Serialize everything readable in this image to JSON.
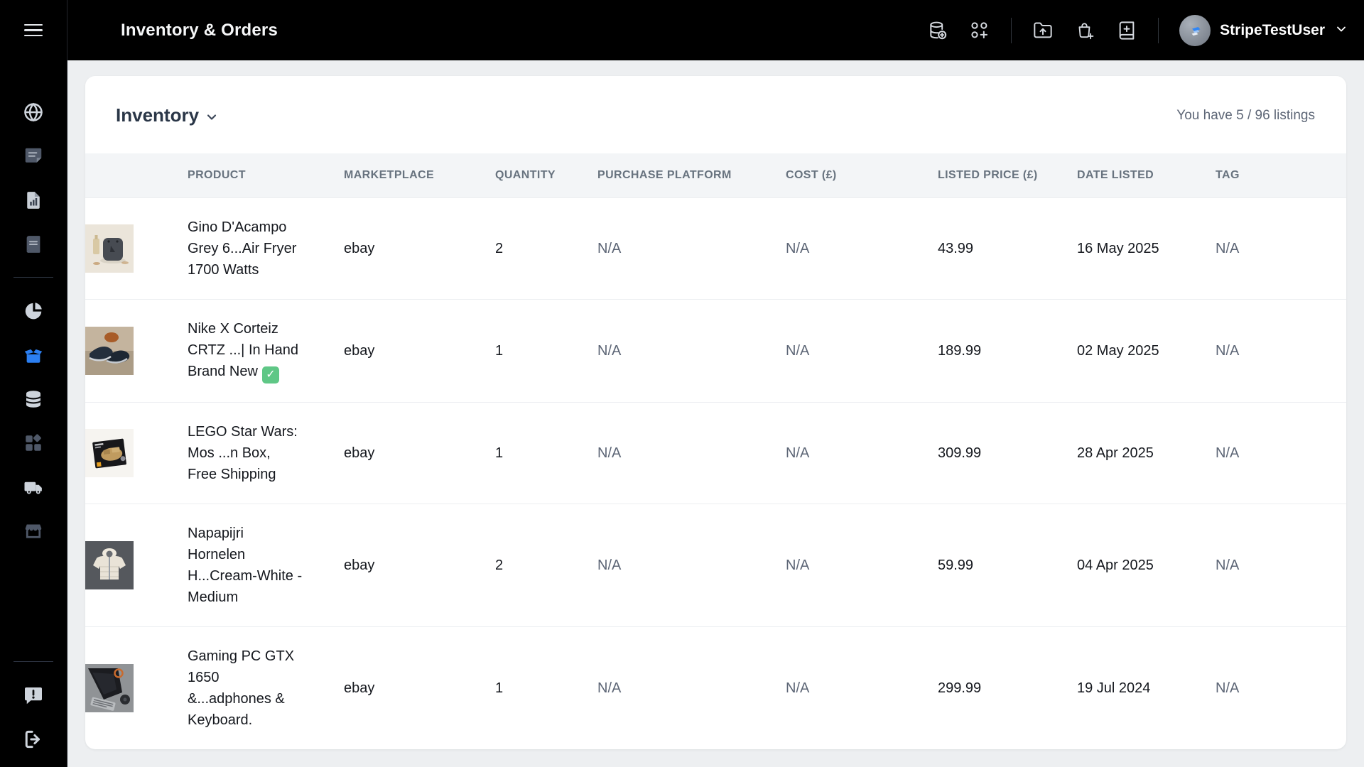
{
  "topbar": {
    "title": "Inventory & Orders",
    "icons": [
      "database-add-icon",
      "grid-add-icon",
      "folder-upload-icon",
      "bag-add-icon",
      "book-add-icon"
    ],
    "user": {
      "name": "StripeTestUser",
      "menu_icon": "chevron-down-icon"
    }
  },
  "sidebar": {
    "menu_icon": "hamburger-menu-icon",
    "icons_top": [
      "globe-icon",
      "note-icon",
      "file-chart-icon",
      "book-icon"
    ],
    "icons_middle": [
      "pie-chart-icon",
      "inventory-box-icon",
      "database-icon",
      "categories-icon",
      "truck-icon",
      "store-icon"
    ],
    "icons_bottom": [
      "feedback-icon",
      "logout-icon"
    ],
    "active_item": "inventory-box-icon",
    "active_color": "#2b7ff2"
  },
  "page": {
    "title": "Inventory",
    "listings_summary": "You have 5 / 96 listings"
  },
  "table": {
    "columns": [
      "PRODUCT",
      "MARKETPLACE",
      "QUANTITY",
      "PURCHASE PLATFORM",
      "COST (£)",
      "LISTED PRICE (£)",
      "DATE LISTED",
      "TAG"
    ],
    "rows": [
      {
        "product": "Gino D'Acampo Grey 6...Air Fryer 1700 Watts",
        "image": "airfryer",
        "marketplace": "ebay",
        "quantity": "2",
        "purchase_platform": "N/A",
        "cost": "N/A",
        "listed_price": "43.99",
        "date_listed": "16 May 2025",
        "tag": "N/A"
      },
      {
        "product": "Nike X Corteiz CRTZ ...| In Hand Brand New",
        "badge": "✓",
        "image": "sneakers",
        "marketplace": "ebay",
        "quantity": "1",
        "purchase_platform": "N/A",
        "cost": "N/A",
        "listed_price": "189.99",
        "date_listed": "02 May 2025",
        "tag": "N/A"
      },
      {
        "product": "LEGO Star Wars: Mos ...n Box, Free Shipping",
        "image": "lego",
        "marketplace": "ebay",
        "quantity": "1",
        "purchase_platform": "N/A",
        "cost": "N/A",
        "listed_price": "309.99",
        "date_listed": "28 Apr 2025",
        "tag": "N/A"
      },
      {
        "product": "Napapijri Hornelen H...Cream-White - Medium",
        "image": "jacket",
        "marketplace": "ebay",
        "quantity": "2",
        "purchase_platform": "N/A",
        "cost": "N/A",
        "listed_price": "59.99",
        "date_listed": "04 Apr 2025",
        "tag": "N/A"
      },
      {
        "product": "Gaming PC GTX 1650 &...adphones & Keyboard.",
        "image": "pc",
        "marketplace": "ebay",
        "quantity": "1",
        "purchase_platform": "N/A",
        "cost": "N/A",
        "listed_price": "299.99",
        "date_listed": "19 Jul 2024",
        "tag": "N/A"
      }
    ]
  },
  "colors": {
    "topbar_bg": "#000000",
    "content_bg": "#edeff1",
    "accent_blue": "#2b7ff2",
    "badge_green": "#5fc786",
    "muted_text": "#5d6676"
  }
}
